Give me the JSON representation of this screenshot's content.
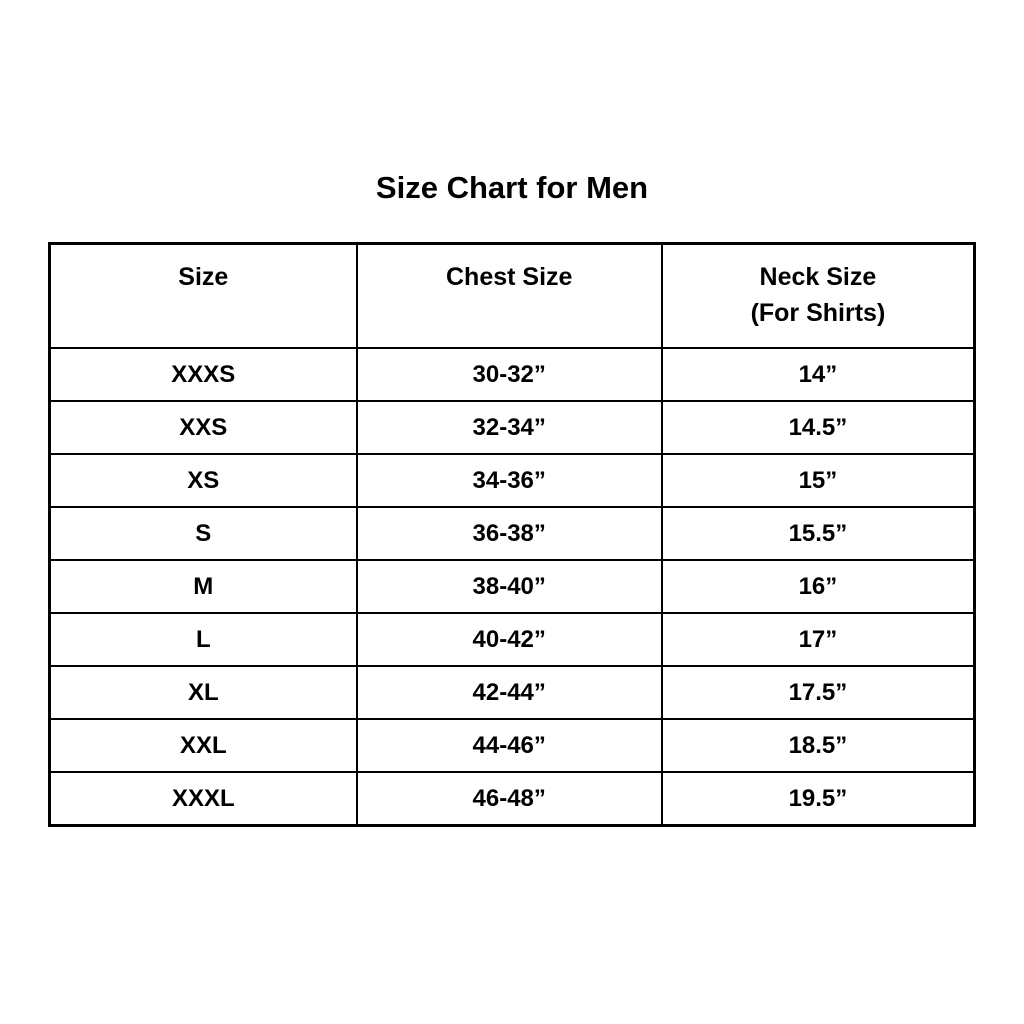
{
  "page": {
    "title": "Size Chart for Men"
  },
  "table": {
    "headers": {
      "size": "Size",
      "chest": "Chest Size",
      "neck_line1": "Neck Size",
      "neck_line2": "(For Shirts)"
    },
    "rows": [
      {
        "size": "XXXS",
        "chest": "30-32”",
        "neck": "14”"
      },
      {
        "size": "XXS",
        "chest": "32-34”",
        "neck": "14.5”"
      },
      {
        "size": "XS",
        "chest": "34-36”",
        "neck": "15”"
      },
      {
        "size": "S",
        "chest": "36-38”",
        "neck": "15.5”"
      },
      {
        "size": "M",
        "chest": "38-40”",
        "neck": "16”"
      },
      {
        "size": "L",
        "chest": "40-42”",
        "neck": "17”"
      },
      {
        "size": "XL",
        "chest": "42-44”",
        "neck": "17.5”"
      },
      {
        "size": "XXL",
        "chest": "44-46”",
        "neck": "18.5”"
      },
      {
        "size": "XXXL",
        "chest": "46-48”",
        "neck": "19.5”"
      }
    ]
  },
  "colors": {
    "background": "#ffffff",
    "text": "#000000",
    "border": "#000000"
  },
  "chart_data": {
    "type": "table",
    "title": "Size Chart for Men",
    "columns": [
      "Size",
      "Chest Size",
      "Neck Size (For Shirts)"
    ],
    "rows": [
      [
        "XXXS",
        "30-32”",
        "14”"
      ],
      [
        "XXS",
        "32-34”",
        "14.5”"
      ],
      [
        "XS",
        "34-36”",
        "15”"
      ],
      [
        "S",
        "36-38”",
        "15.5”"
      ],
      [
        "M",
        "38-40”",
        "16”"
      ],
      [
        "L",
        "40-42”",
        "17”"
      ],
      [
        "XL",
        "42-44”",
        "17.5”"
      ],
      [
        "XXL",
        "44-46”",
        "18.5”"
      ],
      [
        "XXXL",
        "46-48”",
        "19.5”"
      ]
    ]
  }
}
